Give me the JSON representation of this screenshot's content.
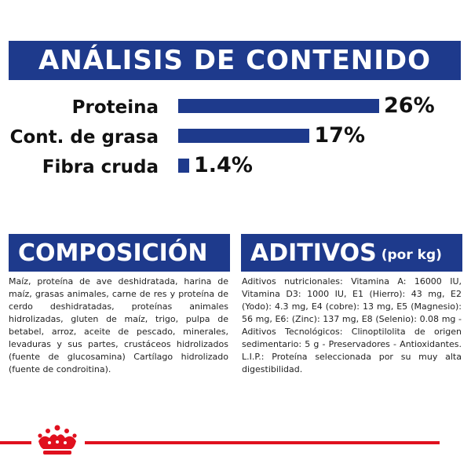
{
  "header": {
    "title": "ANÁLISIS DE CONTENIDO"
  },
  "analysis": [
    {
      "label": "Proteina",
      "value": 26,
      "display": "26%"
    },
    {
      "label": "Cont. de grasa",
      "value": 17,
      "display": "17%"
    },
    {
      "label": "Fibra cruda",
      "value": 1.4,
      "display": "1.4%"
    }
  ],
  "composicion": {
    "title": "COMPOSICIÓN",
    "text": "Maíz, proteína de ave deshidratada, harina de maíz, grasas animales, carne de res y proteína de cerdo deshidratadas, proteínas animales hidrolizadas, gluten de maíz, trigo, pulpa de betabel, arroz, aceite de pescado, minerales, levaduras y sus partes, crustáceos hidrolizados (fuente de glucosamina) Cartílago hidrolizado (fuente de condroitina)."
  },
  "aditivos": {
    "title": "ADITIVOS",
    "subtitle": "(por kg)",
    "text": "Aditivos nutricionales: Vitamina A: 16000 IU, Vitamina D3: 1000 IU, E1 (Hierro): 43 mg, E2 (Yodo): 4.3 mg, E4 (cobre): 13 mg, E5 (Magnesio): 56 mg, E6: (Zinc): 137 mg, E8 (Selenio): 0.08 mg - Aditivos Tecnológicos: Clinoptilolita de origen sedimentario: 5 g - Preservadores - Antioxidantes. L.I.P.: Proteína seleccionada por su muy alta digestibilidad."
  },
  "colors": {
    "brand_blue": "#1e3a8c",
    "accent_red": "#e0101e"
  },
  "icons": {
    "logo": "crown-logo-icon"
  }
}
